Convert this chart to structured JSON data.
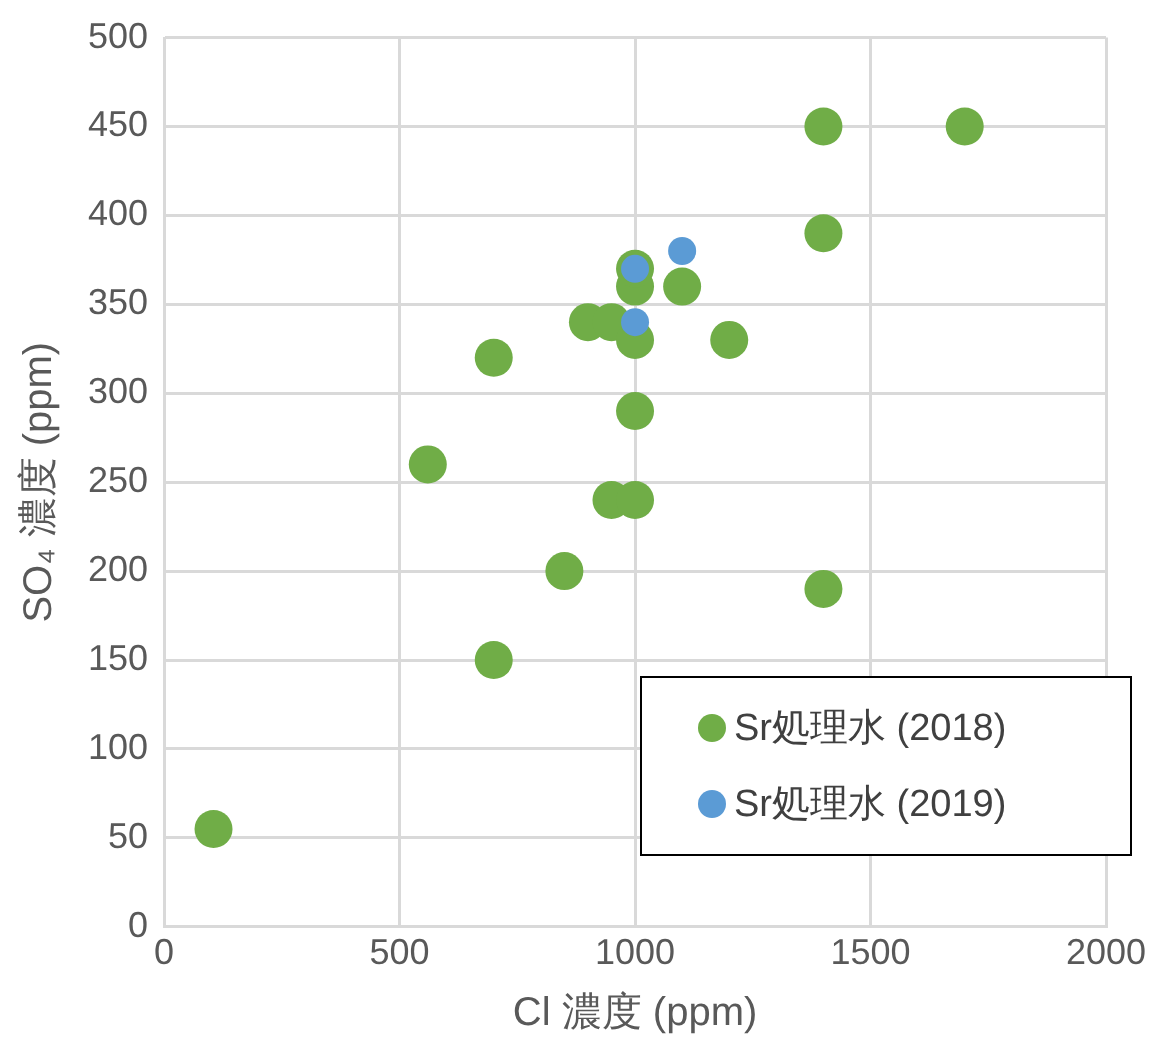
{
  "chart_data": {
    "type": "scatter",
    "xlabel": "Cl 濃度 (ppm)",
    "ylabel": "SO₄ 濃度 (ppm)",
    "xlim": [
      0,
      2000
    ],
    "xticks": [
      0,
      500,
      1000,
      1500,
      2000
    ],
    "ylim": [
      0,
      500
    ],
    "yticks": [
      0,
      50,
      100,
      150,
      200,
      250,
      300,
      350,
      400,
      450,
      500
    ],
    "grid": true,
    "legend": "bottom right",
    "marker": "circle",
    "series": [
      {
        "name": "Sr処理水 (2018)",
        "color": "#70ad47",
        "x": [
          105,
          560,
          700,
          700,
          850,
          900,
          950,
          950,
          1000,
          1000,
          1000,
          1000,
          1000,
          1100,
          1200,
          1400,
          1400,
          1400,
          1700
        ],
        "values": [
          55,
          260,
          320,
          150,
          200,
          340,
          340,
          240,
          240,
          290,
          330,
          360,
          370,
          360,
          330,
          390,
          450,
          190,
          450
        ]
      },
      {
        "name": "Sr処理水 (2019)",
        "color": "#5b9bd5",
        "x": [
          1000,
          1000,
          1100
        ],
        "values": [
          370,
          340,
          380
        ]
      }
    ]
  }
}
